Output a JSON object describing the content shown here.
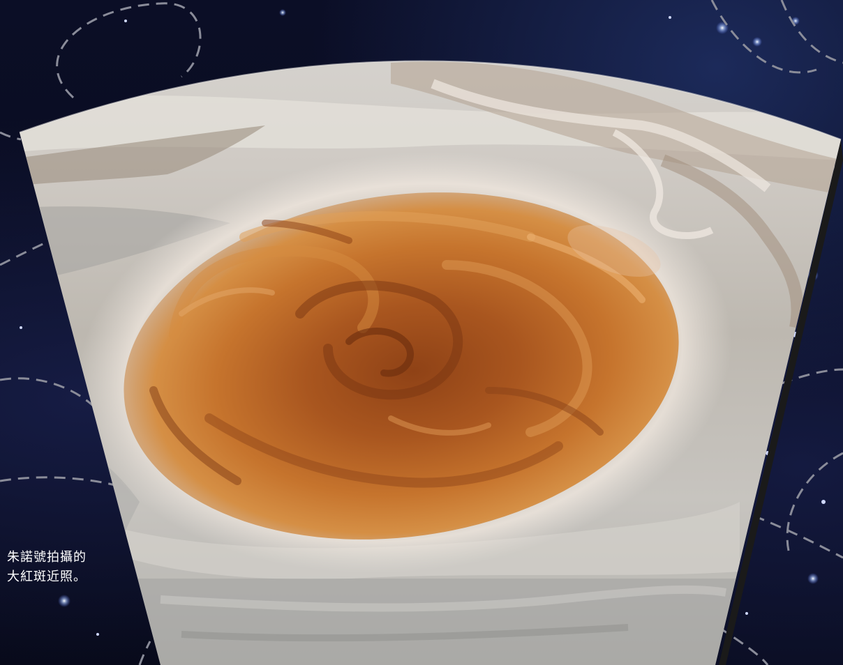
{
  "caption": {
    "line1": "朱諾號拍攝的",
    "line2": "大紅斑近照。"
  },
  "image": {
    "subject": "great-red-spot",
    "colors": {
      "space": "#0a0c1e",
      "cloud_light": "#dcd8d2",
      "cloud_gray": "#a9a8a4",
      "spot_core": "#9a4d1e",
      "spot_mid": "#c8752e",
      "spot_edge": "#d9984e",
      "caption_text": "#ffffff",
      "dashed_orbit": "#8a8c99"
    }
  }
}
